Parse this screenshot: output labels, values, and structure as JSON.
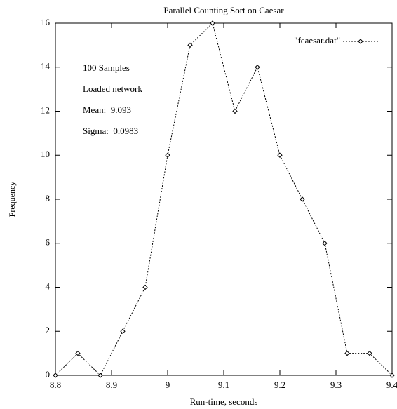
{
  "chart_data": {
    "type": "line",
    "title": "Parallel Counting Sort on Caesar",
    "x_label": "Run-time, seconds",
    "y_label": "Frequency",
    "annotations": [
      "100 Samples",
      "Loaded network",
      "Mean:  9.093",
      "Sigma:  0.0983"
    ],
    "x": [
      8.8,
      8.84,
      8.88,
      8.92,
      8.96,
      9.0,
      9.04,
      9.08,
      9.12,
      9.16,
      9.2,
      9.24,
      9.28,
      9.32,
      9.36,
      9.4
    ],
    "series": [
      {
        "name": "\"fcaesar.dat\"",
        "color": "#000000",
        "values": [
          0,
          1,
          0,
          2,
          4,
          10,
          15,
          16,
          12,
          14,
          10,
          8,
          6,
          1,
          1,
          0
        ]
      }
    ],
    "xlim": [
      8.8,
      9.4
    ],
    "xticks": [
      8.8,
      8.9,
      9,
      9.1,
      9.2,
      9.3,
      9.4
    ],
    "ylim": [
      0,
      16
    ],
    "yticks": [
      0,
      2,
      4,
      6,
      8,
      10,
      12,
      14,
      16
    ],
    "legend": "top right",
    "grid": false
  }
}
